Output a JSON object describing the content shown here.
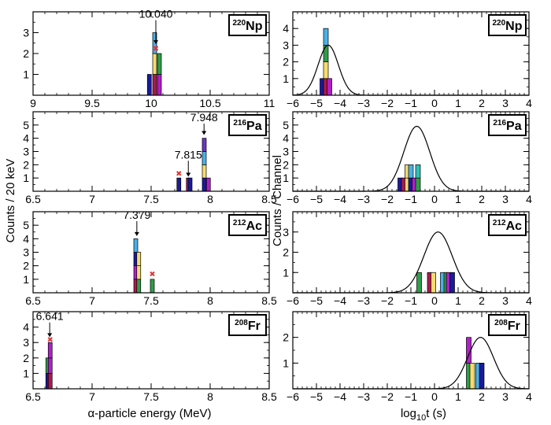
{
  "ylabel_left": "Counts / 20 keV",
  "ylabel_right": "Counts / Channel",
  "xlabel_left": "α-particle energy (MeV)",
  "xlabel_right_base": "log",
  "xlabel_right_sub": "10",
  "xlabel_right_rest": "t (s)",
  "colors": {
    "navy": "#1a1a9c",
    "crimson": "#b0184a",
    "yellow": "#f5dc6e",
    "green": "#2e9e48",
    "magenta": "#b020c8",
    "skyblue": "#4ab0e8",
    "purple": "#6a38c0",
    "teal": "#30c0b8",
    "marker": "#e03030"
  },
  "chart_data": [
    {
      "type": "bar",
      "panel": "energy",
      "row": 0,
      "nuclide_mass": "220",
      "nuclide_symbol": "Np",
      "xlim": [
        9,
        11
      ],
      "ylim": [
        0,
        4
      ],
      "x_ticks": [
        "9",
        "9.5",
        "10",
        "10.5",
        "11"
      ],
      "y_ticks": [
        "1",
        "2",
        "3"
      ],
      "stacks": [
        {
          "x": 9.985,
          "segments": [
            "navy"
          ]
        },
        {
          "x": 10.03,
          "segments": [
            "crimson",
            "yellow",
            "skyblue"
          ]
        },
        {
          "x": 10.07,
          "segments": [
            "magenta",
            "green"
          ]
        }
      ],
      "markers": [
        {
          "x": 10.04,
          "y": 2.25
        }
      ],
      "annotations": [
        {
          "label": "10.040",
          "x": 10.04,
          "y_from": 3.6,
          "y_to": 2.45
        }
      ]
    },
    {
      "type": "bar",
      "panel": "energy",
      "row": 1,
      "nuclide_mass": "216",
      "nuclide_symbol": "Pa",
      "xlim": [
        6.5,
        8.5
      ],
      "ylim": [
        0,
        6
      ],
      "x_ticks": [
        "6.5",
        "7",
        "7.5",
        "8",
        "8.5"
      ],
      "y_ticks": [
        "1",
        "2",
        "3",
        "4",
        "5"
      ],
      "stacks": [
        {
          "x": 7.735,
          "segments": [
            "navy"
          ]
        },
        {
          "x": 7.815,
          "segments": [
            "crimson"
          ]
        },
        {
          "x": 7.83,
          "segments": [
            "navy"
          ]
        },
        {
          "x": 7.95,
          "segments": [
            "navy",
            "yellow",
            "skyblue",
            "purple"
          ]
        },
        {
          "x": 7.985,
          "segments": [
            "magenta"
          ]
        }
      ],
      "markers": [
        {
          "x": 7.735,
          "y": 1.35
        }
      ],
      "annotations": [
        {
          "label": "7.948",
          "x": 7.948,
          "y_from": 5.1,
          "y_to": 4.25
        },
        {
          "label": "7.815",
          "x": 7.815,
          "y_from": 2.3,
          "y_to": 1.1
        }
      ]
    },
    {
      "type": "bar",
      "panel": "energy",
      "row": 2,
      "nuclide_mass": "212",
      "nuclide_symbol": "Ac",
      "xlim": [
        6.5,
        8.5
      ],
      "ylim": [
        0,
        6
      ],
      "x_ticks": [
        "6.5",
        "7",
        "7.5",
        "8",
        "8.5"
      ],
      "y_ticks": [
        "1",
        "2",
        "3",
        "4",
        "5"
      ],
      "stacks": [
        {
          "x": 7.37,
          "segments": [
            "crimson",
            "magenta",
            "navy",
            "skyblue"
          ]
        },
        {
          "x": 7.395,
          "segments": [
            "green",
            "yellow",
            "yellow"
          ]
        },
        {
          "x": 7.51,
          "segments": [
            "green"
          ]
        }
      ],
      "markers": [
        {
          "x": 7.51,
          "y": 1.4
        }
      ],
      "annotations": [
        {
          "label": "7.379",
          "x": 7.379,
          "y_from": 5.3,
          "y_to": 4.2
        }
      ]
    },
    {
      "type": "bar",
      "panel": "energy",
      "row": 3,
      "nuclide_mass": "208",
      "nuclide_symbol": "Fr",
      "xlim": [
        6.5,
        8.5
      ],
      "ylim": [
        0,
        5
      ],
      "x_ticks": [
        "6.5",
        "7",
        "7.5",
        "8",
        "8.5"
      ],
      "y_ticks": [
        "1",
        "2",
        "3",
        "4"
      ],
      "stacks": [
        {
          "x": 6.625,
          "segments": [
            "navy",
            "green"
          ]
        },
        {
          "x": 6.645,
          "segments": [
            "crimson",
            "magenta",
            "magenta"
          ]
        }
      ],
      "markers": [
        {
          "x": 6.645,
          "y": 3.2
        }
      ],
      "annotations": [
        {
          "label": "6.641",
          "x": 6.641,
          "y_from": 4.3,
          "y_to": 3.35
        }
      ]
    },
    {
      "type": "bar",
      "panel": "time",
      "row": 0,
      "nuclide_mass": "220",
      "nuclide_symbol": "Np",
      "xlim": [
        -6,
        4
      ],
      "ylim": [
        0,
        5
      ],
      "x_ticks": [
        "−6",
        "−5",
        "−4",
        "−3",
        "−2",
        "−1",
        "0",
        "1",
        "2",
        "3",
        "4"
      ],
      "y_ticks": [
        "1",
        "2",
        "3",
        "4"
      ],
      "stacks": [
        {
          "x": -4.75,
          "segments": [
            "navy"
          ]
        },
        {
          "x": -4.6,
          "segments": [
            "crimson",
            "yellow",
            "green",
            "skyblue"
          ]
        },
        {
          "x": -4.45,
          "segments": [
            "magenta"
          ]
        }
      ],
      "fit_curve": {
        "mu": -4.5,
        "sigma": 0.43,
        "amplitude": 3.0
      }
    },
    {
      "type": "bar",
      "panel": "time",
      "row": 1,
      "nuclide_mass": "216",
      "nuclide_symbol": "Pa",
      "xlim": [
        -6,
        4
      ],
      "ylim": [
        0,
        6
      ],
      "x_ticks": [
        "−6",
        "−5",
        "−4",
        "−3",
        "−2",
        "−1",
        "0",
        "1",
        "2",
        "3",
        "4"
      ],
      "y_ticks": [
        "1",
        "2",
        "3",
        "4",
        "5"
      ],
      "stacks": [
        {
          "x": -1.45,
          "segments": [
            "navy"
          ]
        },
        {
          "x": -1.3,
          "segments": [
            "crimson"
          ]
        },
        {
          "x": -1.15,
          "segments": [
            "yellow",
            "yellow"
          ]
        },
        {
          "x": -1.0,
          "segments": [
            "navy",
            "skyblue"
          ]
        },
        {
          "x": -0.85,
          "segments": [
            "magenta"
          ]
        },
        {
          "x": -0.7,
          "segments": [
            "green",
            "teal"
          ]
        }
      ],
      "fit_curve": {
        "mu": -0.75,
        "sigma": 0.55,
        "amplitude": 4.9
      }
    },
    {
      "type": "bar",
      "panel": "time",
      "row": 2,
      "nuclide_mass": "212",
      "nuclide_symbol": "Ac",
      "xlim": [
        -6,
        4
      ],
      "ylim": [
        0,
        4
      ],
      "x_ticks": [
        "−6",
        "−5",
        "−4",
        "−3",
        "−2",
        "−1",
        "0",
        "1",
        "2",
        "3",
        "4"
      ],
      "y_ticks": [
        "1",
        "2",
        "3"
      ],
      "stacks": [
        {
          "x": -0.65,
          "segments": [
            "green"
          ]
        },
        {
          "x": -0.2,
          "segments": [
            "crimson"
          ]
        },
        {
          "x": -0.05,
          "segments": [
            "yellow"
          ]
        },
        {
          "x": 0.35,
          "segments": [
            "skyblue"
          ]
        },
        {
          "x": 0.5,
          "segments": [
            "green"
          ]
        },
        {
          "x": 0.6,
          "segments": [
            "magenta"
          ]
        },
        {
          "x": 0.75,
          "segments": [
            "navy"
          ]
        }
      ],
      "fit_curve": {
        "mu": 0.15,
        "sigma": 0.6,
        "amplitude": 3.0
      }
    },
    {
      "type": "bar",
      "panel": "time",
      "row": 3,
      "nuclide_mass": "208",
      "nuclide_symbol": "Fr",
      "xlim": [
        -6,
        4
      ],
      "ylim": [
        0,
        3
      ],
      "x_ticks": [
        "−6",
        "−5",
        "−4",
        "−3",
        "−2",
        "−1",
        "0",
        "1",
        "2",
        "3",
        "4"
      ],
      "y_ticks": [
        "1",
        "2"
      ],
      "stacks": [
        {
          "x": 1.45,
          "segments": [
            "green",
            "magenta"
          ]
        },
        {
          "x": 1.6,
          "segments": [
            "yellow"
          ]
        },
        {
          "x": 1.85,
          "segments": [
            "skyblue"
          ]
        },
        {
          "x": 2.0,
          "segments": [
            "navy"
          ]
        }
      ],
      "fit_curve": {
        "mu": 1.95,
        "sigma": 0.55,
        "amplitude": 2.0
      }
    }
  ]
}
